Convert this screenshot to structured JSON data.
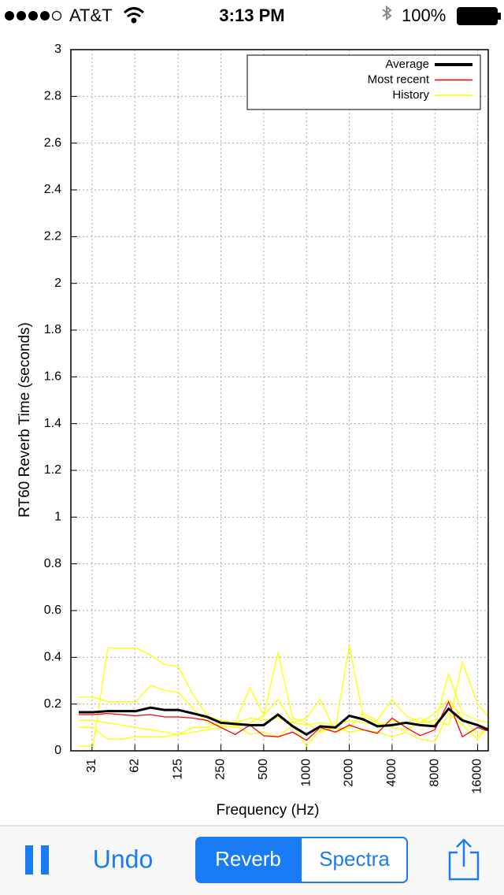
{
  "status_bar": {
    "carrier": "AT&T",
    "time": "3:13 PM",
    "battery": "100%"
  },
  "toolbar": {
    "undo": "Undo",
    "segments": [
      "Reverb",
      "Spectra"
    ],
    "selected": 0
  },
  "chart_data": {
    "type": "line",
    "xlabel": "Frequency (Hz)",
    "ylabel": "RT60 Reverb Time (seconds)",
    "xscale": "log",
    "xlim": [
      22,
      19000
    ],
    "xticks": [
      31,
      62,
      125,
      250,
      500,
      1000,
      2000,
      4000,
      8000,
      16000
    ],
    "ylim": [
      0,
      3
    ],
    "yticks": [
      0,
      0.2,
      0.4,
      0.6,
      0.8,
      1,
      1.2,
      1.4,
      1.6,
      1.8,
      2,
      2.2,
      2.4,
      2.6,
      2.8,
      3
    ],
    "grid": true,
    "legend": "upper right",
    "x": [
      25,
      31.5,
      40,
      50,
      63,
      80,
      100,
      125,
      160,
      200,
      250,
      315,
      400,
      500,
      630,
      800,
      1000,
      1250,
      1600,
      2000,
      2500,
      3150,
      4000,
      5000,
      6300,
      8000,
      10000,
      12500,
      16000,
      20000
    ],
    "series": [
      {
        "name": "History",
        "color": "#ffff00",
        "values": [
          0.02,
          0.02,
          0.44,
          0.44,
          0.44,
          0.41,
          0.37,
          0.36,
          0.24,
          0.15,
          0.13,
          0.12,
          0.14,
          0.13,
          0.14,
          0.12,
          0.11,
          0.12,
          0.11,
          0.13,
          0.12,
          0.11,
          0.13,
          0.12,
          0.14,
          0.11,
          0.33,
          0.16,
          0.13,
          0.12
        ]
      },
      {
        "name": "History",
        "color": "#ffff00",
        "values": [
          0.23,
          0.23,
          0.21,
          0.21,
          0.21,
          0.28,
          0.26,
          0.25,
          0.18,
          0.12,
          0.11,
          0.1,
          0.12,
          0.15,
          0.42,
          0.14,
          0.12,
          0.08,
          0.1,
          0.45,
          0.15,
          0.12,
          0.1,
          0.09,
          0.12,
          0.13,
          0.11,
          0.38,
          0.2,
          0.13
        ]
      },
      {
        "name": "History",
        "color": "#ffff00",
        "values": [
          0.13,
          0.13,
          0.12,
          0.11,
          0.1,
          0.09,
          0.08,
          0.07,
          0.1,
          0.1,
          0.12,
          0.12,
          0.27,
          0.15,
          0.22,
          0.12,
          0.14,
          0.22,
          0.08,
          0.1,
          0.16,
          0.13,
          0.22,
          0.15,
          0.12,
          0.16,
          0.22,
          0.14,
          0.07,
          0.1
        ]
      },
      {
        "name": "History",
        "color": "#ffff00",
        "values": [
          0.1,
          0.1,
          0.05,
          0.05,
          0.06,
          0.06,
          0.06,
          0.07,
          0.08,
          0.09,
          0.1,
          0.11,
          0.07,
          0.08,
          0.06,
          0.11,
          0.02,
          0.09,
          0.1,
          0.08,
          0.09,
          0.08,
          0.06,
          0.08,
          0.05,
          0.04,
          0.16,
          0.11,
          0.05,
          0.12
        ]
      },
      {
        "name": "Most recent",
        "color": "#ff0000",
        "values": [
          0.155,
          0.155,
          0.16,
          0.155,
          0.15,
          0.155,
          0.145,
          0.145,
          0.14,
          0.13,
          0.1,
          0.07,
          0.11,
          0.065,
          0.06,
          0.08,
          0.045,
          0.1,
          0.08,
          0.11,
          0.09,
          0.075,
          0.14,
          0.1,
          0.065,
          0.09,
          0.21,
          0.06,
          0.1,
          0.08
        ]
      },
      {
        "name": "Average",
        "color": "#000000",
        "values": [
          0.165,
          0.165,
          0.17,
          0.17,
          0.17,
          0.185,
          0.175,
          0.175,
          0.16,
          0.145,
          0.12,
          0.115,
          0.11,
          0.11,
          0.155,
          0.105,
          0.07,
          0.105,
          0.1,
          0.15,
          0.135,
          0.105,
          0.11,
          0.12,
          0.11,
          0.105,
          0.18,
          0.13,
          0.11,
          0.085
        ]
      }
    ]
  }
}
